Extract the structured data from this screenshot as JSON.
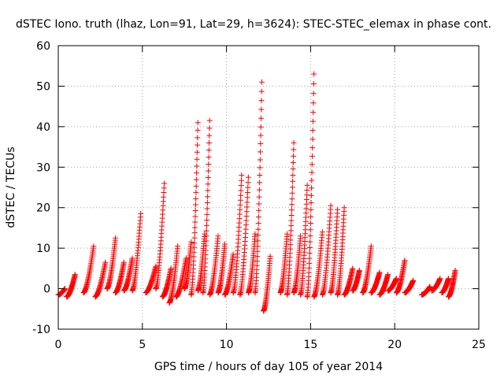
{
  "chart_data": {
    "type": "scatter",
    "title": "dSTEC Iono. truth (lhaz, Lon=91, Lat=29, h=3624): STEC-STEC_elemax in phase cont.",
    "xlabel": "GPS time / hours of day 105 of year 2014",
    "ylabel": "dSTEC  / TECUs",
    "xlim": [
      0,
      25
    ],
    "ylim": [
      -10,
      60
    ],
    "xticks": [
      "0",
      "5",
      "10",
      "15",
      "20",
      "25"
    ],
    "yticks": [
      "-10",
      "0",
      "10",
      "20",
      "30",
      "40",
      "50",
      "60"
    ],
    "grid": true,
    "marker": "plus",
    "marker_color": "#ff0000",
    "passes": [
      {
        "x": [
          0.0,
          0.4
        ],
        "y": [
          -1.5,
          0.0
        ]
      },
      {
        "x": [
          0.5,
          1.0
        ],
        "y": [
          -2.0,
          3.5
        ]
      },
      {
        "x": [
          1.5,
          2.1
        ],
        "y": [
          -1.0,
          10.5
        ]
      },
      {
        "x": [
          2.2,
          2.8
        ],
        "y": [
          -2.0,
          6.5
        ]
      },
      {
        "x": [
          2.9,
          3.4
        ],
        "y": [
          0.0,
          12.5
        ]
      },
      {
        "x": [
          3.4,
          3.9
        ],
        "y": [
          -1.0,
          6.5
        ]
      },
      {
        "x": [
          3.9,
          4.4
        ],
        "y": [
          -0.5,
          7.5
        ]
      },
      {
        "x": [
          4.4,
          4.9
        ],
        "y": [
          -0.5,
          18.5
        ]
      },
      {
        "x": [
          5.2,
          5.8
        ],
        "y": [
          -1.0,
          5.5
        ]
      },
      {
        "x": [
          5.8,
          6.3
        ],
        "y": [
          0.0,
          26.0
        ]
      },
      {
        "x": [
          6.2,
          6.7
        ],
        "y": [
          -2.0,
          5.0
        ]
      },
      {
        "x": [
          6.6,
          7.1
        ],
        "y": [
          -3.5,
          10.5
        ]
      },
      {
        "x": [
          7.0,
          7.6
        ],
        "y": [
          -2.0,
          7.5
        ]
      },
      {
        "x": [
          7.5,
          7.9
        ],
        "y": [
          0.0,
          11.5
        ]
      },
      {
        "x": [
          7.9,
          8.3
        ],
        "y": [
          -1.5,
          41.0
        ]
      },
      {
        "x": [
          8.3,
          8.7
        ],
        "y": [
          -0.5,
          13.5
        ]
      },
      {
        "x": [
          8.6,
          9.0
        ],
        "y": [
          -1.0,
          41.5
        ]
      },
      {
        "x": [
          9.0,
          9.5
        ],
        "y": [
          -1.5,
          13.0
        ]
      },
      {
        "x": [
          9.5,
          9.9
        ],
        "y": [
          -1.0,
          11.0
        ]
      },
      {
        "x": [
          9.9,
          10.4
        ],
        "y": [
          -1.5,
          8.5
        ]
      },
      {
        "x": [
          10.4,
          10.9
        ],
        "y": [
          -1.0,
          28.0
        ]
      },
      {
        "x": [
          10.8,
          11.3
        ],
        "y": [
          -1.5,
          27.5
        ]
      },
      {
        "x": [
          11.3,
          11.7
        ],
        "y": [
          -1.0,
          13.5
        ]
      },
      {
        "x": [
          11.7,
          12.1
        ],
        "y": [
          -1.0,
          51.0
        ]
      },
      {
        "x": [
          12.2,
          12.6
        ],
        "y": [
          -5.5,
          8.0
        ]
      },
      {
        "x": [
          13.2,
          13.6
        ],
        "y": [
          -1.0,
          13.5
        ]
      },
      {
        "x": [
          13.6,
          14.0
        ],
        "y": [
          -1.5,
          36.0
        ]
      },
      {
        "x": [
          14.0,
          14.4
        ],
        "y": [
          -1.0,
          13.0
        ]
      },
      {
        "x": [
          14.4,
          14.8
        ],
        "y": [
          -1.5,
          25.5
        ]
      },
      {
        "x": [
          14.8,
          15.2
        ],
        "y": [
          -2.0,
          53.0
        ]
      },
      {
        "x": [
          15.2,
          15.7
        ],
        "y": [
          -2.0,
          14.0
        ]
      },
      {
        "x": [
          15.7,
          16.2
        ],
        "y": [
          -1.5,
          20.5
        ]
      },
      {
        "x": [
          16.2,
          16.6
        ],
        "y": [
          -1.0,
          19.5
        ]
      },
      {
        "x": [
          16.6,
          17.0
        ],
        "y": [
          -1.5,
          20.0
        ]
      },
      {
        "x": [
          17.0,
          17.5
        ],
        "y": [
          -1.5,
          5.0
        ]
      },
      {
        "x": [
          17.5,
          17.9
        ],
        "y": [
          -0.5,
          4.5
        ]
      },
      {
        "x": [
          18.1,
          18.6
        ],
        "y": [
          -1.0,
          10.5
        ]
      },
      {
        "x": [
          18.6,
          19.1
        ],
        "y": [
          -1.0,
          4.0
        ]
      },
      {
        "x": [
          19.1,
          19.6
        ],
        "y": [
          -1.5,
          3.5
        ]
      },
      {
        "x": [
          19.6,
          20.1
        ],
        "y": [
          -0.5,
          2.5
        ]
      },
      {
        "x": [
          20.1,
          20.6
        ],
        "y": [
          -1.0,
          7.0
        ]
      },
      {
        "x": [
          20.6,
          21.1
        ],
        "y": [
          -1.0,
          2.0
        ]
      },
      {
        "x": [
          21.6,
          22.1
        ],
        "y": [
          -1.5,
          0.5
        ]
      },
      {
        "x": [
          22.2,
          22.7
        ],
        "y": [
          -0.5,
          2.5
        ]
      },
      {
        "x": [
          22.8,
          23.2
        ],
        "y": [
          -1.0,
          2.5
        ]
      },
      {
        "x": [
          23.2,
          23.6
        ],
        "y": [
          -2.0,
          4.5
        ]
      }
    ]
  }
}
